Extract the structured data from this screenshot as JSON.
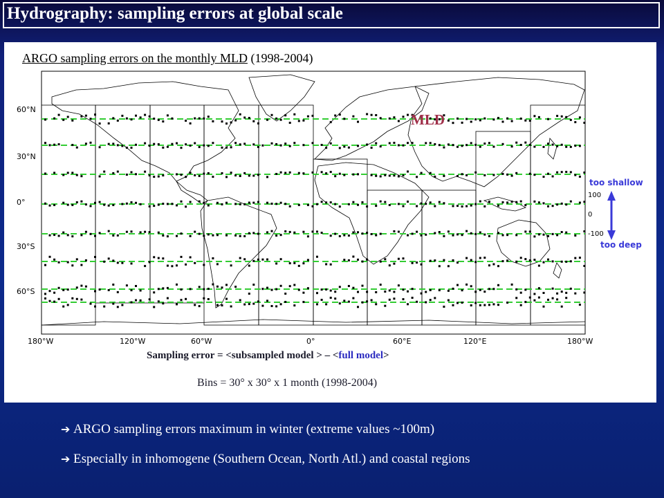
{
  "header": {
    "title": "Hydrography: sampling errors at global scale"
  },
  "figure": {
    "subtitle_underlined": "ARGO sampling errors on the monthly MLD",
    "subtitle_years": "(1998-2004)",
    "map_label": "MLD",
    "lat_labels": [
      "60°N",
      "30°N",
      "0°",
      "30°S",
      "60°S"
    ],
    "lon_labels": [
      "180°W",
      "120°W",
      "60°W",
      "0°",
      "60°E",
      "120°E",
      "180°W"
    ],
    "scale": {
      "top_label": "too shallow",
      "bottom_label": "too deep",
      "ticks": [
        "100",
        "0",
        "-100"
      ]
    },
    "formula_prefix": "Sampling error = <subsampled model > – <",
    "formula_highlight": "full model",
    "formula_suffix": ">",
    "bins": "Bins = 30° x 30° x 1 month (1998-2004)",
    "colors": {
      "zero_line": "#33cc33",
      "points": "#000000",
      "scale_arrow": "#3a3ad8",
      "map_label": "#a0304a"
    }
  },
  "bullets": [
    "ARGO sampling errors maximum in winter (extreme values ~100m)",
    "Especially in inhomogene (Southern Ocean, North Atl.) and coastal regions"
  ]
}
